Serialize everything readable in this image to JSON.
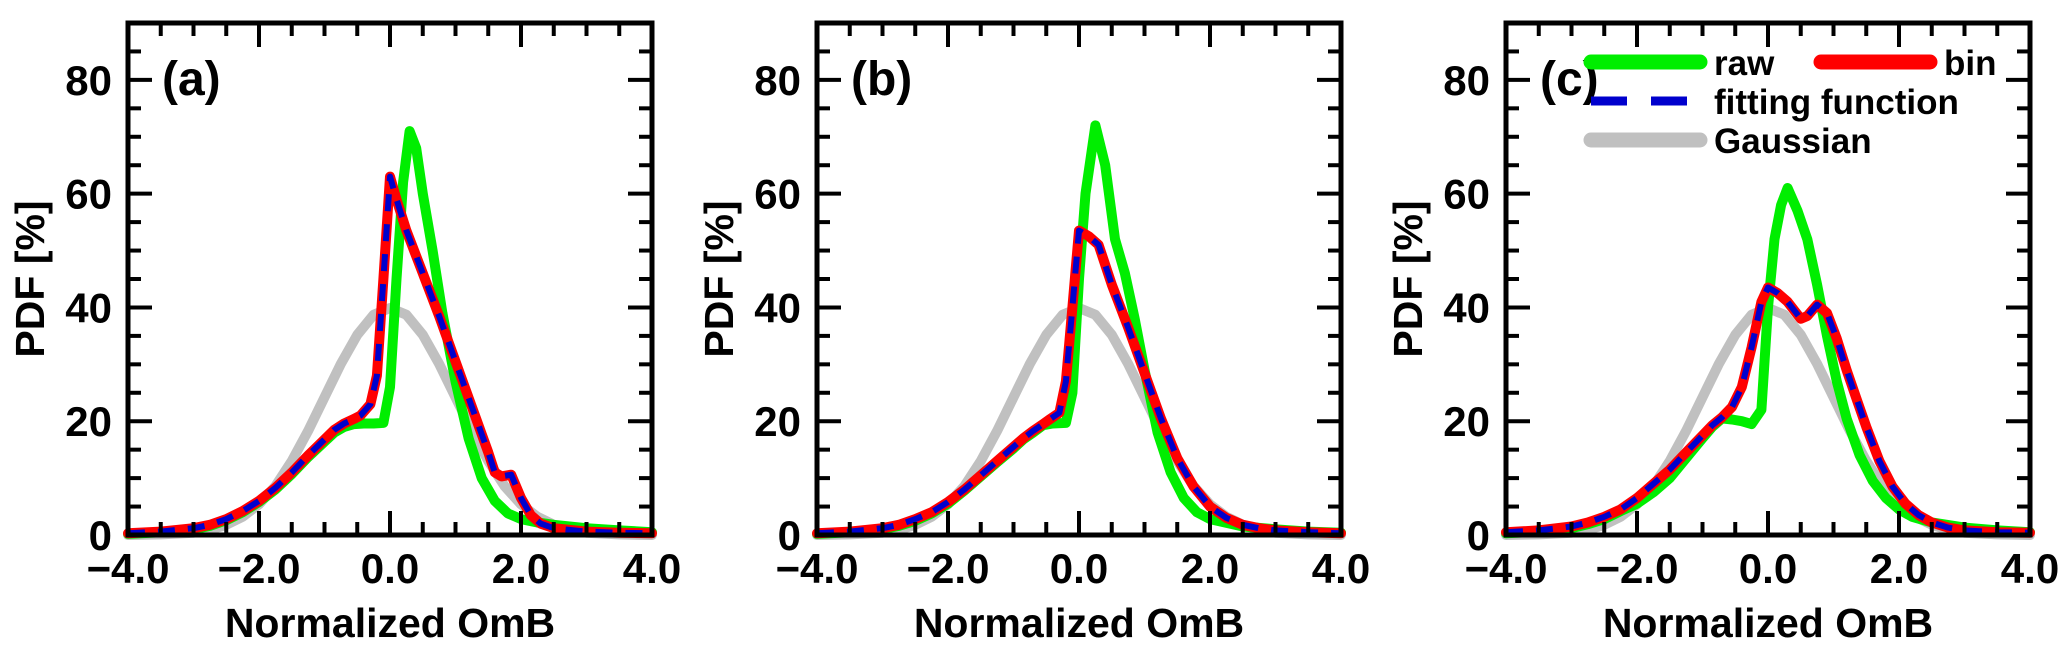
{
  "page": {
    "background": "#ffffff"
  },
  "colors": {
    "raw": "#00ee00",
    "bin": "#ff0000",
    "fitting_function": "#0000cd",
    "gaussian": "#c0c0c0",
    "axis": "#000000"
  },
  "axes": {
    "xlabel": "Normalized OmB",
    "ylabel": "PDF [%]",
    "xlim": [
      -4,
      4
    ],
    "ylim": [
      0,
      90
    ],
    "x_major_ticks": [
      -4,
      -2,
      0,
      2,
      4
    ],
    "x_major_tick_labels": [
      "−4.0",
      "−2.0",
      "0.0",
      "2.0",
      "4.0"
    ],
    "x_minor_step": 0.5,
    "y_major_ticks": [
      0,
      20,
      40,
      60,
      80
    ],
    "y_major_tick_labels": [
      "0",
      "20",
      "40",
      "60",
      "80"
    ],
    "y_minor_step": 5,
    "grid": false,
    "tick_direction": "inward, mirrored on all four sides"
  },
  "legend": {
    "location": "top area of panel (c)",
    "entries": [
      {
        "label": "raw",
        "color": "#00ee00",
        "style": "solid"
      },
      {
        "label": "bin",
        "color": "#ff0000",
        "style": "solid"
      },
      {
        "label": "fitting function",
        "color": "#0000cd",
        "style": "dashed"
      },
      {
        "label": "Gaussian",
        "color": "#c0c0c0",
        "style": "solid"
      }
    ]
  },
  "chart_data": [
    {
      "type": "line",
      "panel_label": "(a)",
      "xlabel": "Normalized OmB",
      "ylabel": "PDF [%]",
      "show_legend": false,
      "series": [
        {
          "name": "Gaussian",
          "key": "gaussian",
          "color": "#c0c0c0",
          "width": 10,
          "dash": null,
          "x": [
            -4,
            -3.5,
            -3,
            -2.75,
            -2.5,
            -2.25,
            -2,
            -1.75,
            -1.5,
            -1.25,
            -1,
            -0.75,
            -0.5,
            -0.25,
            0,
            0.25,
            0.5,
            0.75,
            1,
            1.25,
            1.5,
            1.75,
            2,
            2.25,
            2.5,
            2.75,
            3,
            3.5,
            4
          ],
          "y": [
            0,
            0.1,
            0.4,
            0.9,
            1.8,
            3.2,
            5.4,
            8.6,
            13,
            18.3,
            24.2,
            30.1,
            35.2,
            38.7,
            39.9,
            38.7,
            35.2,
            30.1,
            24.2,
            18.3,
            13,
            8.6,
            5.4,
            3.2,
            1.8,
            0.9,
            0.4,
            0.1,
            0
          ]
        },
        {
          "name": "raw",
          "key": "raw",
          "color": "#00ee00",
          "width": 10,
          "dash": null,
          "x": [
            -4,
            -3.5,
            -3,
            -2.75,
            -2.5,
            -2.25,
            -2,
            -1.75,
            -1.5,
            -1.25,
            -1,
            -0.85,
            -0.7,
            -0.55,
            -0.4,
            -0.25,
            -0.1,
            0,
            0.1,
            0.2,
            0.3,
            0.4,
            0.5,
            0.65,
            0.8,
            1,
            1.2,
            1.4,
            1.6,
            1.8,
            2,
            2.25,
            2.5,
            3,
            3.5,
            4
          ],
          "y": [
            0.2,
            0.5,
            1,
            1.6,
            2.6,
            4,
            5.8,
            8,
            10.7,
            13.7,
            16.4,
            18,
            19,
            19.5,
            19.6,
            19.6,
            19.7,
            26,
            45,
            62,
            71,
            68,
            60,
            50,
            39,
            27,
            17,
            10,
            6,
            3.8,
            2.8,
            2.2,
            1.8,
            1.2,
            0.8,
            0.5
          ]
        },
        {
          "name": "bin",
          "key": "bin",
          "color": "#ff0000",
          "width": 10,
          "dash": null,
          "x": [
            -4,
            -3.5,
            -3,
            -2.75,
            -2.5,
            -2.25,
            -2,
            -1.75,
            -1.5,
            -1.25,
            -1,
            -0.85,
            -0.7,
            -0.55,
            -0.45,
            -0.3,
            -0.2,
            -0.1,
            0,
            0.1,
            0.25,
            0.5,
            0.75,
            1,
            1.25,
            1.5,
            1.6,
            1.7,
            1.85,
            2,
            2.15,
            2.3,
            2.5,
            3,
            3.5,
            4
          ],
          "y": [
            0.3,
            0.6,
            1.2,
            1.8,
            2.8,
            4.2,
            6,
            8.3,
            11,
            14,
            16.8,
            18.5,
            19.6,
            20.4,
            21,
            23,
            28,
            45,
            63,
            59,
            53.5,
            46,
            38.5,
            30.5,
            22.5,
            14.5,
            11,
            10.3,
            10.6,
            6.5,
            3.5,
            2,
            1.2,
            0.6,
            0.4,
            0.3
          ]
        },
        {
          "name": "fitting function",
          "key": "fitting-function",
          "color": "#0000cd",
          "width": 6,
          "dash": "17 13",
          "x": [
            -4,
            -3.5,
            -3,
            -2.75,
            -2.5,
            -2.25,
            -2,
            -1.75,
            -1.5,
            -1.25,
            -1,
            -0.85,
            -0.7,
            -0.55,
            -0.45,
            -0.3,
            -0.2,
            -0.1,
            0,
            0.1,
            0.25,
            0.5,
            0.75,
            1,
            1.25,
            1.5,
            1.6,
            1.7,
            1.85,
            2,
            2.15,
            2.3,
            2.5,
            3,
            3.5,
            4
          ],
          "y": [
            0.3,
            0.6,
            1.2,
            1.8,
            2.8,
            4.2,
            6,
            8.3,
            11,
            14,
            16.8,
            18.5,
            19.6,
            20.4,
            21,
            23,
            28,
            45,
            63,
            59,
            53.5,
            46,
            38.5,
            30.5,
            22.5,
            14.5,
            11,
            10.3,
            10.6,
            6.5,
            3.5,
            2,
            1.2,
            0.6,
            0.4,
            0.3
          ]
        }
      ]
    },
    {
      "type": "line",
      "panel_label": "(b)",
      "xlabel": "Normalized OmB",
      "ylabel": "PDF [%]",
      "show_legend": false,
      "series": [
        {
          "name": "Gaussian",
          "key": "gaussian",
          "color": "#c0c0c0",
          "width": 10,
          "dash": null,
          "x": [
            -4,
            -3.5,
            -3,
            -2.75,
            -2.5,
            -2.25,
            -2,
            -1.75,
            -1.5,
            -1.25,
            -1,
            -0.75,
            -0.5,
            -0.25,
            0,
            0.25,
            0.5,
            0.75,
            1,
            1.25,
            1.5,
            1.75,
            2,
            2.25,
            2.5,
            2.75,
            3,
            3.5,
            4
          ],
          "y": [
            0,
            0.1,
            0.4,
            0.9,
            1.8,
            3.2,
            5.4,
            8.6,
            13,
            18.3,
            24.2,
            30.1,
            35.2,
            38.7,
            39.9,
            38.7,
            35.2,
            30.1,
            24.2,
            18.3,
            13,
            8.6,
            5.4,
            3.2,
            1.8,
            0.9,
            0.4,
            0.1,
            0
          ]
        },
        {
          "name": "raw",
          "key": "raw",
          "color": "#00ee00",
          "width": 10,
          "dash": null,
          "x": [
            -4,
            -3.5,
            -3,
            -2.75,
            -2.5,
            -2.25,
            -2,
            -1.75,
            -1.5,
            -1.25,
            -1,
            -0.85,
            -0.7,
            -0.55,
            -0.4,
            -0.2,
            -0.1,
            0,
            0.1,
            0.25,
            0.4,
            0.55,
            0.7,
            0.85,
            1,
            1.2,
            1.4,
            1.6,
            1.8,
            2,
            2.5,
            3,
            3.5,
            4
          ],
          "y": [
            0.2,
            0.5,
            1,
            1.6,
            2.5,
            3.8,
            5.5,
            7.8,
            10.3,
            12.8,
            15.2,
            16.8,
            18,
            19.3,
            19.6,
            19.7,
            25,
            45,
            60,
            72,
            65,
            52,
            46,
            38,
            29,
            18,
            11,
            6.5,
            4,
            2.8,
            1.5,
            1,
            0.6,
            0.4
          ]
        },
        {
          "name": "bin",
          "key": "bin",
          "color": "#ff0000",
          "width": 10,
          "dash": null,
          "x": [
            -4,
            -3.5,
            -3,
            -2.75,
            -2.5,
            -2.25,
            -2,
            -1.75,
            -1.5,
            -1.25,
            -1,
            -0.85,
            -0.7,
            -0.55,
            -0.45,
            -0.3,
            -0.2,
            -0.1,
            0,
            0.15,
            0.3,
            0.5,
            0.75,
            1,
            1.25,
            1.5,
            1.75,
            2,
            2.25,
            2.5,
            2.75,
            3,
            3.5,
            4
          ],
          "y": [
            0.3,
            0.6,
            1.2,
            1.8,
            2.8,
            4,
            5.8,
            8,
            10.5,
            13,
            15.5,
            17,
            18.3,
            19.5,
            20.3,
            21.5,
            27,
            40,
            53.5,
            52.5,
            51,
            44,
            36.5,
            28.5,
            20.5,
            13.5,
            8.5,
            5,
            3,
            1.8,
            1.2,
            0.8,
            0.5,
            0.3
          ]
        },
        {
          "name": "fitting function",
          "key": "fitting-function",
          "color": "#0000cd",
          "width": 6,
          "dash": "17 13",
          "x": [
            -4,
            -3.5,
            -3,
            -2.75,
            -2.5,
            -2.25,
            -2,
            -1.75,
            -1.5,
            -1.25,
            -1,
            -0.85,
            -0.7,
            -0.55,
            -0.45,
            -0.3,
            -0.2,
            -0.1,
            0,
            0.15,
            0.3,
            0.5,
            0.75,
            1,
            1.25,
            1.5,
            1.75,
            2,
            2.25,
            2.5,
            2.75,
            3,
            3.5,
            4
          ],
          "y": [
            0.3,
            0.6,
            1.2,
            1.8,
            2.8,
            4,
            5.8,
            8,
            10.5,
            13,
            15.5,
            17,
            18.3,
            19.5,
            20.3,
            21.5,
            27,
            40,
            53.5,
            52.5,
            51,
            44,
            36.5,
            28.5,
            20.5,
            13.5,
            8.5,
            5,
            3,
            1.8,
            1.2,
            0.8,
            0.5,
            0.3
          ]
        }
      ]
    },
    {
      "type": "line",
      "panel_label": "(c)",
      "xlabel": "Normalized OmB",
      "ylabel": "PDF [%]",
      "show_legend": true,
      "series": [
        {
          "name": "Gaussian",
          "key": "gaussian",
          "color": "#c0c0c0",
          "width": 10,
          "dash": null,
          "x": [
            -4,
            -3.5,
            -3,
            -2.75,
            -2.5,
            -2.25,
            -2,
            -1.75,
            -1.5,
            -1.25,
            -1,
            -0.75,
            -0.5,
            -0.25,
            0,
            0.25,
            0.5,
            0.75,
            1,
            1.25,
            1.5,
            1.75,
            2,
            2.25,
            2.5,
            2.75,
            3,
            3.5,
            4
          ],
          "y": [
            0,
            0.1,
            0.4,
            0.9,
            1.8,
            3.2,
            5.4,
            8.6,
            13,
            18.3,
            24.2,
            30.1,
            35.2,
            38.7,
            39.9,
            38.7,
            35.2,
            30.1,
            24.2,
            18.3,
            13,
            8.6,
            5.4,
            3.2,
            1.8,
            0.9,
            0.4,
            0.1,
            0
          ]
        },
        {
          "name": "raw",
          "key": "raw",
          "color": "#00ee00",
          "width": 10,
          "dash": null,
          "x": [
            -4,
            -3.5,
            -3,
            -2.75,
            -2.5,
            -2.25,
            -2,
            -1.75,
            -1.5,
            -1.25,
            -1,
            -0.85,
            -0.7,
            -0.55,
            -0.4,
            -0.25,
            -0.1,
            0,
            0.1,
            0.2,
            0.3,
            0.45,
            0.6,
            0.75,
            0.9,
            1.05,
            1.2,
            1.4,
            1.6,
            1.8,
            2,
            2.2,
            2.5,
            3,
            3.5,
            4
          ],
          "y": [
            0.3,
            0.6,
            1.2,
            1.9,
            2.8,
            4.2,
            5.5,
            7.5,
            10,
            13.5,
            17,
            19,
            20.5,
            20.3,
            20,
            19.5,
            22,
            40,
            52,
            58,
            61,
            57,
            52,
            44,
            35,
            27,
            20.5,
            14,
            9.5,
            6.5,
            4.5,
            3.2,
            2.2,
            1.3,
            0.8,
            0.5
          ]
        },
        {
          "name": "bin",
          "key": "bin",
          "color": "#ff0000",
          "width": 10,
          "dash": null,
          "x": [
            -4,
            -3.5,
            -3,
            -2.75,
            -2.5,
            -2.25,
            -2,
            -1.75,
            -1.5,
            -1.25,
            -1,
            -0.85,
            -0.7,
            -0.55,
            -0.4,
            -0.25,
            -0.1,
            0,
            0.15,
            0.3,
            0.4,
            0.5,
            0.6,
            0.75,
            0.9,
            1.05,
            1.2,
            1.35,
            1.5,
            1.7,
            1.9,
            2.1,
            2.3,
            2.5,
            2.75,
            3,
            3.5,
            4
          ],
          "y": [
            0.5,
            0.8,
            1.5,
            2.2,
            3.2,
            4.5,
            6.5,
            9,
            11.5,
            14.5,
            17.5,
            19.3,
            20.7,
            22.5,
            26,
            33,
            41,
            43.5,
            42.5,
            41,
            39.5,
            38,
            38.5,
            40.5,
            39,
            34.5,
            29,
            24,
            19,
            13,
            8.5,
            5.5,
            3.5,
            2.2,
            1.3,
            0.8,
            0.5,
            0.4
          ]
        },
        {
          "name": "fitting function",
          "key": "fitting-function",
          "color": "#0000cd",
          "width": 6,
          "dash": "17 13",
          "x": [
            -4,
            -3.5,
            -3,
            -2.75,
            -2.5,
            -2.25,
            -2,
            -1.75,
            -1.5,
            -1.25,
            -1,
            -0.85,
            -0.7,
            -0.55,
            -0.4,
            -0.25,
            -0.1,
            0,
            0.15,
            0.3,
            0.4,
            0.5,
            0.6,
            0.75,
            0.9,
            1.05,
            1.2,
            1.35,
            1.5,
            1.7,
            1.9,
            2.1,
            2.3,
            2.5,
            2.75,
            3,
            3.5,
            4
          ],
          "y": [
            0.5,
            0.8,
            1.5,
            2.2,
            3.2,
            4.5,
            6.5,
            9,
            11.5,
            14.5,
            17.5,
            19.3,
            20.7,
            22.5,
            26,
            33,
            41,
            43.5,
            42.5,
            41,
            39.5,
            38,
            38.5,
            40.5,
            39,
            34.5,
            29,
            24,
            19,
            13,
            8.5,
            5.5,
            3.5,
            2.2,
            1.3,
            0.8,
            0.5,
            0.4
          ]
        }
      ]
    }
  ]
}
